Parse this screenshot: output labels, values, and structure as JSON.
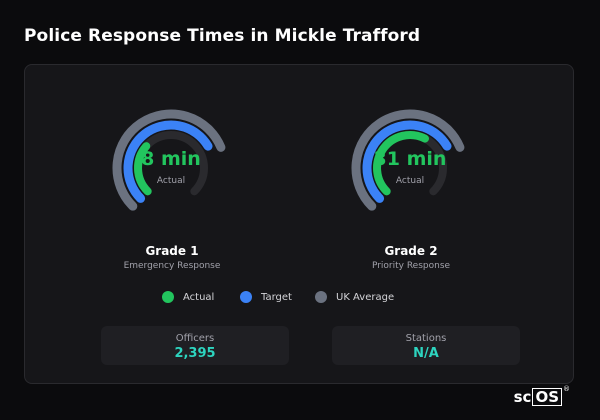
{
  "page": {
    "title": "Police Response Times in Mickle Trafford"
  },
  "gauges": [
    {
      "name": "Grade 1",
      "description": "Emergency Response",
      "value_text": "8 min",
      "value_label": "Actual",
      "actual_fraction": 0.32,
      "target_fraction": 0.72,
      "uk_average_fraction": 0.75
    },
    {
      "name": "Grade 2",
      "description": "Priority Response",
      "value_text": "31 min",
      "value_label": "Actual",
      "actual_fraction": 0.6,
      "target_fraction": 0.72,
      "uk_average_fraction": 0.75
    }
  ],
  "legend": [
    {
      "label": "Actual",
      "color": "#22c55e"
    },
    {
      "label": "Target",
      "color": "#3b82f6"
    },
    {
      "label": "UK Average",
      "color": "#6b7280"
    }
  ],
  "stats": [
    {
      "label": "Officers",
      "value": "2,395"
    },
    {
      "label": "Stations",
      "value": "N/A"
    }
  ],
  "brand": {
    "prefix": "sc",
    "boxed": "OS",
    "mark": "®"
  },
  "colors": {
    "actual": "#22c55e",
    "target": "#3b82f6",
    "uk_average": "#6b7280",
    "track": "#2a2a2e",
    "stat_value": "#2dd4bf"
  }
}
